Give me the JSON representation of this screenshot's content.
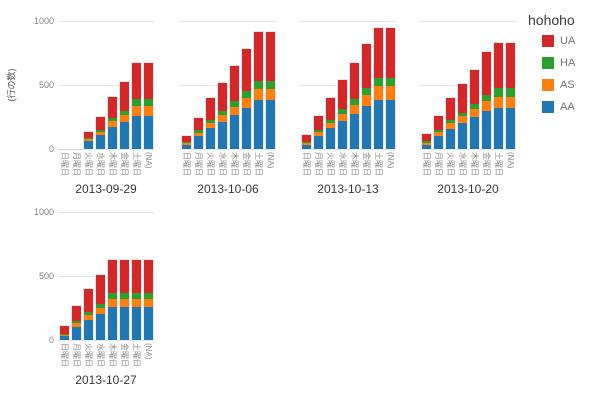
{
  "chart_data": {
    "type": "bar",
    "stacked": true,
    "title": "",
    "ylabel": "(行の数)",
    "xlabel": "",
    "ylim": [
      0,
      1000
    ],
    "yticks": [
      0,
      500,
      1000
    ],
    "grid": "horizontal",
    "legend_title": "hohoho",
    "legend_position": "top-right",
    "legend_order_top_to_bottom": [
      "UA",
      "HA",
      "AS",
      "AA"
    ],
    "stack_order_bottom_to_top": [
      "AA",
      "AS",
      "HA",
      "UA"
    ],
    "colors": {
      "UA": "#d62728",
      "HA": "#2ca02c",
      "AS": "#ff7f0e",
      "AA": "#1f77b4"
    },
    "categories": [
      "日曜日",
      "月曜日",
      "火曜日",
      "水曜日",
      "木曜日",
      "金曜日",
      "土曜日",
      "(NA)"
    ],
    "facets": [
      {
        "title": "2013-09-29",
        "series": [
          {
            "name": "AA",
            "values": [
              0,
              0,
              60,
              110,
              170,
              210,
              260,
              260
            ]
          },
          {
            "name": "AS",
            "values": [
              0,
              0,
              15,
              25,
              45,
              55,
              75,
              75
            ]
          },
          {
            "name": "HA",
            "values": [
              0,
              0,
              10,
              15,
              25,
              35,
              55,
              55
            ]
          },
          {
            "name": "UA",
            "values": [
              0,
              0,
              45,
              100,
              165,
              220,
              285,
              285
            ]
          }
        ]
      },
      {
        "title": "2013-10-06",
        "series": [
          {
            "name": "AA",
            "values": [
              30,
              100,
              165,
              210,
              265,
              320,
              385,
              385
            ]
          },
          {
            "name": "AS",
            "values": [
              15,
              25,
              40,
              55,
              65,
              75,
              85,
              85
            ]
          },
          {
            "name": "HA",
            "values": [
              10,
              20,
              25,
              30,
              45,
              55,
              65,
              65
            ]
          },
          {
            "name": "UA",
            "values": [
              50,
              100,
              170,
              220,
              270,
              330,
              380,
              380
            ]
          }
        ]
      },
      {
        "title": "2013-10-13",
        "series": [
          {
            "name": "AA",
            "values": [
              30,
              105,
              165,
              220,
              275,
              335,
              385,
              385
            ]
          },
          {
            "name": "AS",
            "values": [
              15,
              25,
              40,
              55,
              70,
              85,
              105,
              105
            ]
          },
          {
            "name": "HA",
            "values": [
              10,
              20,
              25,
              35,
              45,
              55,
              65,
              65
            ]
          },
          {
            "name": "UA",
            "values": [
              55,
              105,
              170,
              230,
              280,
              345,
              390,
              390
            ]
          }
        ]
      },
      {
        "title": "2013-10-20",
        "series": [
          {
            "name": "AA",
            "values": [
              35,
              105,
              160,
              205,
              250,
              295,
              320,
              320
            ]
          },
          {
            "name": "AS",
            "values": [
              15,
              25,
              40,
              50,
              65,
              80,
              90,
              90
            ]
          },
          {
            "name": "HA",
            "values": [
              10,
              20,
              25,
              30,
              40,
              50,
              65,
              65
            ]
          },
          {
            "name": "UA",
            "values": [
              60,
              105,
              170,
              225,
              265,
              330,
              355,
              355
            ]
          }
        ]
      },
      {
        "title": "2013-10-27",
        "series": [
          {
            "name": "AA",
            "values": [
              30,
              105,
              160,
              205,
              255,
              255,
              255,
              255
            ]
          },
          {
            "name": "AS",
            "values": [
              12,
              25,
              35,
              45,
              65,
              65,
              65,
              65
            ]
          },
          {
            "name": "HA",
            "values": [
              8,
              15,
              25,
              30,
              45,
              45,
              45,
              45
            ]
          },
          {
            "name": "UA",
            "values": [
              60,
              120,
              180,
              230,
              260,
              260,
              260,
              260
            ]
          }
        ]
      }
    ]
  }
}
